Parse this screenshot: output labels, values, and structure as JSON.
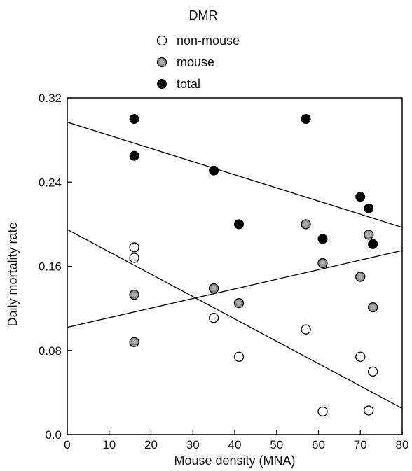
{
  "chart_data": {
    "type": "scatter",
    "legend_title": "DMR",
    "legend_position": "top-center",
    "xlabel": "Mouse density (MNA)",
    "ylabel": "Daily mortality rate",
    "xlim": [
      0,
      80
    ],
    "ylim": [
      0.0,
      0.32
    ],
    "x_ticks": [
      0,
      10,
      20,
      30,
      40,
      50,
      60,
      70,
      80
    ],
    "y_ticks": [
      0.0,
      0.08,
      0.16,
      0.24,
      0.32
    ],
    "y_tick_labels": [
      "0.0",
      "0.08",
      "0.16",
      "0.24",
      "0.32"
    ],
    "grid": false,
    "series": [
      {
        "name": "non-mouse",
        "marker": "open-circle",
        "color": "#ffffff",
        "points": [
          [
            16,
            0.178
          ],
          [
            16,
            0.168
          ],
          [
            35,
            0.111
          ],
          [
            41,
            0.074
          ],
          [
            57,
            0.1
          ],
          [
            61,
            0.022
          ],
          [
            70,
            0.074
          ],
          [
            72,
            0.023
          ],
          [
            73,
            0.06
          ]
        ],
        "trend": [
          [
            0,
            0.195
          ],
          [
            80,
            0.025
          ]
        ]
      },
      {
        "name": "mouse",
        "marker": "gray-circle",
        "color": "#8a8a8a",
        "points": [
          [
            16,
            0.133
          ],
          [
            16,
            0.088
          ],
          [
            35,
            0.139
          ],
          [
            41,
            0.125
          ],
          [
            57,
            0.2
          ],
          [
            61,
            0.163
          ],
          [
            70,
            0.15
          ],
          [
            72,
            0.19
          ],
          [
            73,
            0.121
          ]
        ],
        "trend": [
          [
            0,
            0.102
          ],
          [
            80,
            0.175
          ]
        ]
      },
      {
        "name": "total",
        "marker": "filled-circle",
        "color": "#000000",
        "points": [
          [
            16,
            0.3
          ],
          [
            16,
            0.265
          ],
          [
            35,
            0.251
          ],
          [
            41,
            0.2
          ],
          [
            57,
            0.3
          ],
          [
            61,
            0.186
          ],
          [
            70,
            0.226
          ],
          [
            72,
            0.215
          ],
          [
            73,
            0.181
          ]
        ],
        "trend": [
          [
            0,
            0.297
          ],
          [
            80,
            0.197
          ]
        ]
      }
    ]
  }
}
